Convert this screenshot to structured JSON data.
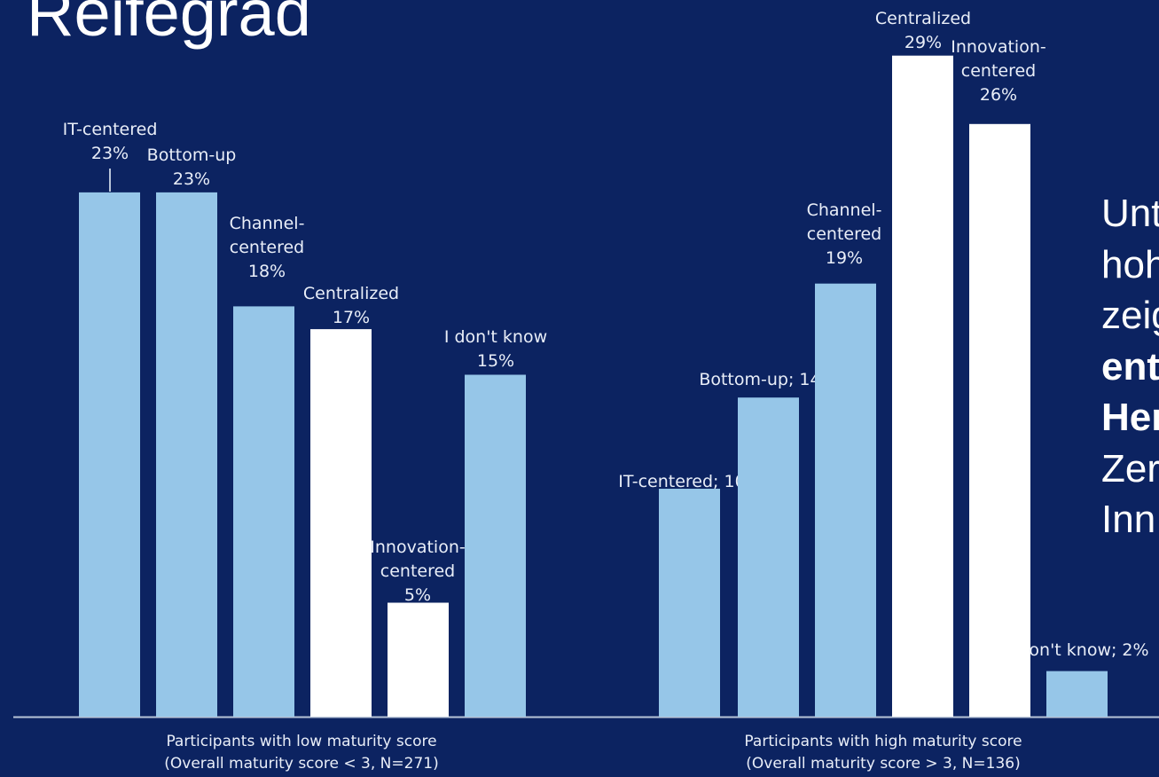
{
  "slide": {
    "title": "Reifegrad",
    "side_text": {
      "lines": [
        {
          "text": "Unt",
          "bold": false
        },
        {
          "text": "hoh",
          "bold": false
        },
        {
          "text": "zeig",
          "bold": false
        },
        {
          "text": "ent",
          "bold": true
        },
        {
          "text": "Her",
          "bold": true
        },
        {
          "text": "Zer",
          "bold": false
        },
        {
          "text": "Inn",
          "bold": false
        }
      ]
    }
  },
  "colors": {
    "background": "#0c2361",
    "bar_light_blue": "#96c6e8",
    "bar_white": "#ffffff",
    "label_text": "#e9eef8",
    "axis": "#b8c4d8"
  },
  "chart_data": {
    "type": "bar",
    "ylim": [
      0,
      30
    ],
    "groups": [
      {
        "caption_line1": "Participants with low maturity score",
        "caption_line2": "(Overall maturity score < 3, N=271)",
        "bars": [
          {
            "category": "IT-centered",
            "value": 23,
            "label": [
              "IT-centered",
              "23%"
            ],
            "highlight": false
          },
          {
            "category": "Bottom-up",
            "value": 23,
            "label": [
              "Bottom-up",
              "23%"
            ],
            "highlight": false
          },
          {
            "category": "Channel-centered",
            "value": 18,
            "label": [
              "Channel-",
              "centered",
              "18%"
            ],
            "highlight": false
          },
          {
            "category": "Centralized",
            "value": 17,
            "label": [
              "Centralized",
              "17%"
            ],
            "highlight": true
          },
          {
            "category": "Innovation-centered",
            "value": 5,
            "label": [
              "Innovation-",
              "centered",
              "5%"
            ],
            "highlight": true
          },
          {
            "category": "I don't know",
            "value": 15,
            "label": [
              "I don't know",
              "15%"
            ],
            "highlight": false
          }
        ]
      },
      {
        "caption_line1": "Participants with high maturity score",
        "caption_line2": "(Overall maturity score > 3, N=136)",
        "bars": [
          {
            "category": "IT-centered",
            "value": 10,
            "label": [
              "IT-centered; 10%"
            ],
            "highlight": false
          },
          {
            "category": "Bottom-up",
            "value": 14,
            "label": [
              "Bottom-up; 14%"
            ],
            "highlight": false
          },
          {
            "category": "Channel-centered",
            "value": 19,
            "label": [
              "Channel-",
              "centered",
              "19%"
            ],
            "highlight": false
          },
          {
            "category": "Centralized",
            "value": 29,
            "label": [
              "Centralized",
              "29%"
            ],
            "highlight": true
          },
          {
            "category": "Innovation-centered",
            "value": 26,
            "label": [
              "Innovation-",
              "centered",
              "26%"
            ],
            "highlight": true
          },
          {
            "category": "I don't know",
            "value": 2,
            "label": [
              "on't know; 2%"
            ],
            "highlight": false
          }
        ]
      }
    ]
  }
}
